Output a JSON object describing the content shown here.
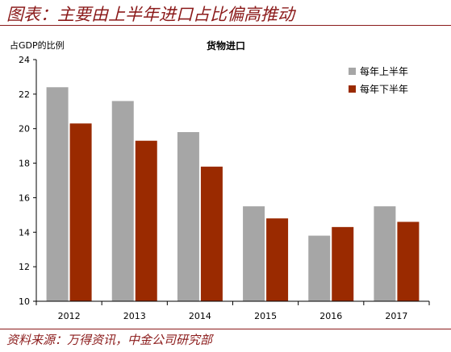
{
  "figure_title": "图表：主要由上半年进口占比偏高推动",
  "source_text": "资料来源：万得资讯，中金公司研究部",
  "chart_data": {
    "type": "bar",
    "title": "货物进口",
    "ylabel": "占GDP的比例",
    "xlabel": "",
    "categories": [
      "2012",
      "2013",
      "2014",
      "2015",
      "2016",
      "2017"
    ],
    "ylim": [
      10,
      24
    ],
    "yticks": [
      10,
      12,
      14,
      16,
      18,
      20,
      22,
      24
    ],
    "grid": false,
    "legend_position": "top-right",
    "series": [
      {
        "name": "每年上半年",
        "color": "#a6a6a6",
        "values": [
          22.4,
          21.6,
          19.8,
          15.5,
          13.8,
          15.5
        ]
      },
      {
        "name": "每年下半年",
        "color": "#9a2a00",
        "values": [
          20.3,
          19.3,
          17.8,
          14.8,
          14.3,
          14.6
        ]
      }
    ]
  }
}
